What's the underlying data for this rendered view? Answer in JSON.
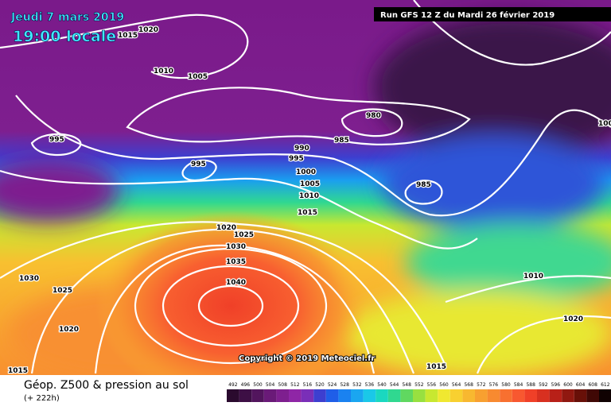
{
  "header": {
    "date": "Jeudi 7 mars 2019",
    "time": "19:00 locale",
    "run": "Run GFS 12 Z du Mardi 26 février 2019"
  },
  "copyright": "Copyright © 2019 Meteociel.fr",
  "footer": {
    "title": "Géop. Z500 & pression au sol",
    "lead": "(+ 222h)"
  },
  "isobar_labels": [
    "1020",
    "1015",
    "1010",
    "1005",
    "980",
    "985",
    "995",
    "995",
    "990",
    "995",
    "1000",
    "1005",
    "1010",
    "1015",
    "985",
    "1020",
    "1025",
    "1030",
    "1035",
    "1040",
    "1030",
    "1025",
    "1020",
    "1015",
    "1015",
    "1010",
    "1020",
    "100"
  ],
  "colorbar": {
    "labels": [
      "492",
      "496",
      "500",
      "504",
      "508",
      "512",
      "516",
      "520",
      "524",
      "528",
      "532",
      "536",
      "540",
      "544",
      "548",
      "552",
      "556",
      "560",
      "564",
      "568",
      "572",
      "576",
      "580",
      "584",
      "588",
      "592",
      "596",
      "600",
      "604",
      "608",
      "612"
    ],
    "colors": [
      "#2a0a2e",
      "#3d0f45",
      "#52155d",
      "#6a1a78",
      "#7e1f8f",
      "#8f26a6",
      "#7a2fb8",
      "#3d3fd0",
      "#1f5ee8",
      "#1a82f0",
      "#1aa6f0",
      "#1ac8e8",
      "#1ad8c0",
      "#30d890",
      "#60d860",
      "#98e040",
      "#c8e830",
      "#f0e830",
      "#f8d030",
      "#f8b830",
      "#f8a030",
      "#f88a30",
      "#f87030",
      "#f85830",
      "#f04028",
      "#d83020",
      "#b82018",
      "#901810",
      "#681008",
      "#400805",
      "#100202"
    ]
  }
}
